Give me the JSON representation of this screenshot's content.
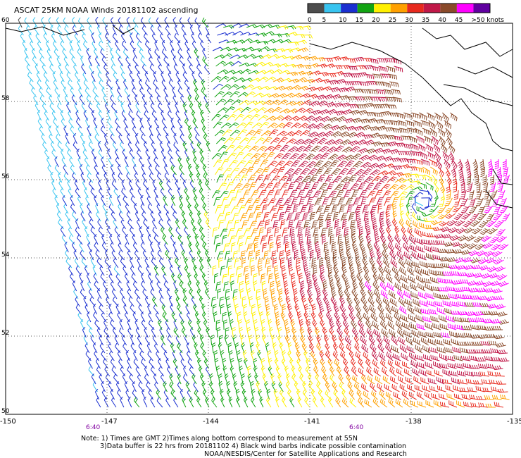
{
  "header": {
    "title": "ASCAT 25KM NOAA Winds 20181102 ascending"
  },
  "colorbar": {
    "labels": [
      "0",
      "5",
      "10",
      "15",
      "20",
      "25",
      "30",
      "35",
      "40",
      "45",
      ">50 knots"
    ],
    "colors": [
      "#4d4d4d",
      "#38c4f0",
      "#1a2fd0",
      "#12a412",
      "#fff000",
      "#ffa000",
      "#e82a1e",
      "#c01848",
      "#8a4a2a",
      "#ff00ff",
      "#6000a0"
    ]
  },
  "map": {
    "latitude_labels": [
      "60",
      "58",
      "56",
      "54",
      "52",
      "50"
    ],
    "longitude_labels": [
      "-150",
      "-147",
      "-144",
      "-141",
      "-138",
      "-135"
    ],
    "time_labels": [
      "6:40",
      "6:40"
    ]
  },
  "notes": [
    "Note: 1) Times are GMT 2)Times along bottom correspond to measurement at 55N",
    "3)Data buffer is 22 hrs from 20181102 4) Black wind barbs indicate possible contamination",
    "NOAA/NESDIS/Center for Satellite Applications and Research"
  ]
}
